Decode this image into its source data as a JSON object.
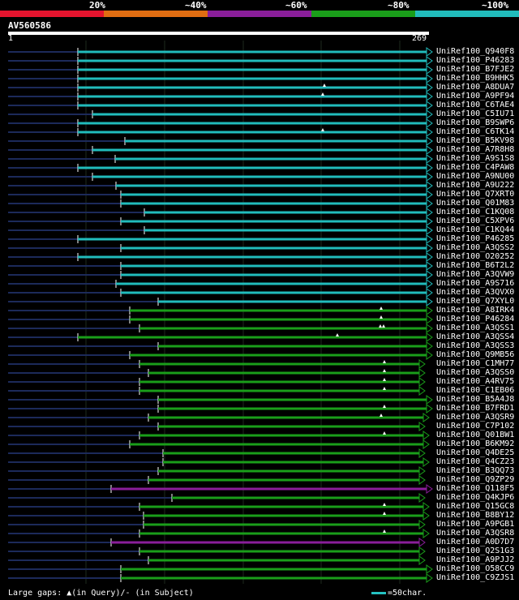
{
  "identity_legend": [
    {
      "label": "20%",
      "color": "#e5142e"
    },
    {
      "label": "~40%",
      "color": "#e06d12"
    },
    {
      "label": "~60%",
      "color": "#8a1e9a"
    },
    {
      "label": "~80%",
      "color": "#1a9e1a"
    },
    {
      "label": "~100%",
      "color": "#21bcbc"
    }
  ],
  "query": {
    "id": "AV560586",
    "start": "1",
    "end": "269"
  },
  "hits": [
    {
      "name": "UniRef100_Q940F8",
      "color": "#21bcbc"
    },
    {
      "name": "UniRef100_P46283",
      "color": "#21bcbc"
    },
    {
      "name": "UniRef100_B7FJE2",
      "color": "#21bcbc"
    },
    {
      "name": "UniRef100_B9HHK5",
      "color": "#21bcbc"
    },
    {
      "name": "UniRef100_A8DUA7",
      "color": "#21bcbc"
    },
    {
      "name": "UniRef100_A9PF94",
      "color": "#21bcbc"
    },
    {
      "name": "UniRef100_C6TAE4",
      "color": "#21bcbc"
    },
    {
      "name": "UniRef100_C5IU71",
      "color": "#21bcbc"
    },
    {
      "name": "UniRef100_B9SWP6",
      "color": "#21bcbc"
    },
    {
      "name": "UniRef100_C6TK14",
      "color": "#21bcbc"
    },
    {
      "name": "UniRef100_B5KV98",
      "color": "#21bcbc"
    },
    {
      "name": "UniRef100_A7R8H8",
      "color": "#21bcbc"
    },
    {
      "name": "UniRef100_A9S1S8",
      "color": "#21bcbc"
    },
    {
      "name": "UniRef100_C4PAW8",
      "color": "#21bcbc"
    },
    {
      "name": "UniRef100_A9NU00",
      "color": "#21bcbc"
    },
    {
      "name": "UniRef100_A9U222",
      "color": "#21bcbc"
    },
    {
      "name": "UniRef100_Q7XRT0",
      "color": "#21bcbc"
    },
    {
      "name": "UniRef100_Q01M83",
      "color": "#21bcbc"
    },
    {
      "name": "UniRef100_C1KQ08",
      "color": "#21bcbc"
    },
    {
      "name": "UniRef100_C5XPV6",
      "color": "#21bcbc"
    },
    {
      "name": "UniRef100_C1KQ44",
      "color": "#21bcbc"
    },
    {
      "name": "UniRef100_P46285",
      "color": "#21bcbc"
    },
    {
      "name": "UniRef100_A3QSS2",
      "color": "#21bcbc"
    },
    {
      "name": "UniRef100_O20252",
      "color": "#21bcbc"
    },
    {
      "name": "UniRef100_B6T2L2",
      "color": "#21bcbc"
    },
    {
      "name": "UniRef100_A3QVW9",
      "color": "#21bcbc"
    },
    {
      "name": "UniRef100_A9S716",
      "color": "#21bcbc"
    },
    {
      "name": "UniRef100_A3QVX0",
      "color": "#21bcbc"
    },
    {
      "name": "UniRef100_Q7XYL0",
      "color": "#21bcbc"
    },
    {
      "name": "UniRef100_A8IRK4",
      "color": "#1a9e1a"
    },
    {
      "name": "UniRef100_P46284",
      "color": "#1a9e1a"
    },
    {
      "name": "UniRef100_A3QSS1",
      "color": "#1a9e1a"
    },
    {
      "name": "UniRef100_A3QSS4",
      "color": "#1a9e1a"
    },
    {
      "name": "UniRef100_A3QSS3",
      "color": "#1a9e1a"
    },
    {
      "name": "UniRef100_Q9MB56",
      "color": "#1a9e1a"
    },
    {
      "name": "UniRef100_C1MH77",
      "color": "#1a9e1a"
    },
    {
      "name": "UniRef100_A3QSS0",
      "color": "#1a9e1a"
    },
    {
      "name": "UniRef100_A4RV75",
      "color": "#1a9e1a"
    },
    {
      "name": "UniRef100_C1EB06",
      "color": "#1a9e1a"
    },
    {
      "name": "UniRef100_B5A4J8",
      "color": "#1a9e1a"
    },
    {
      "name": "UniRef100_B7FRD1",
      "color": "#1a9e1a"
    },
    {
      "name": "UniRef100_A3QSR9",
      "color": "#1a9e1a"
    },
    {
      "name": "UniRef100_C7P102",
      "color": "#1a9e1a"
    },
    {
      "name": "UniRef100_Q01BW1",
      "color": "#1a9e1a"
    },
    {
      "name": "UniRef100_B6KM92",
      "color": "#1a9e1a"
    },
    {
      "name": "UniRef100_Q4DE25",
      "color": "#1a9e1a"
    },
    {
      "name": "UniRef100_Q4CZ23",
      "color": "#1a9e1a"
    },
    {
      "name": "UniRef100_B3QQ73",
      "color": "#1a9e1a"
    },
    {
      "name": "UniRef100_Q9ZP29",
      "color": "#1a9e1a"
    },
    {
      "name": "UniRef100_Q118F5",
      "color": "#8a1e9a"
    },
    {
      "name": "UniRef100_Q4KJP6",
      "color": "#1a9e1a"
    },
    {
      "name": "UniRef100_Q15GC8",
      "color": "#1a9e1a"
    },
    {
      "name": "UniRef100_B8BY12",
      "color": "#1a9e1a"
    },
    {
      "name": "UniRef100_A9PGB1",
      "color": "#1a9e1a"
    },
    {
      "name": "UniRef100_A3QSR8",
      "color": "#1a9e1a"
    },
    {
      "name": "UniRef100_A0D7D7",
      "color": "#8a1e9a"
    },
    {
      "name": "UniRef100_Q2S1G3",
      "color": "#1a9e1a"
    },
    {
      "name": "UniRef100_A9PJJ2",
      "color": "#1a9e1a"
    },
    {
      "name": "UniRef100_O58CC9",
      "color": "#1a9e1a"
    },
    {
      "name": "UniRef100_C9ZJS1",
      "color": "#1a9e1a"
    }
  ],
  "footer": {
    "text": "Large gaps: ▲(in Query)/- (in Subject)"
  },
  "scale": {
    "text": "=50char."
  }
}
